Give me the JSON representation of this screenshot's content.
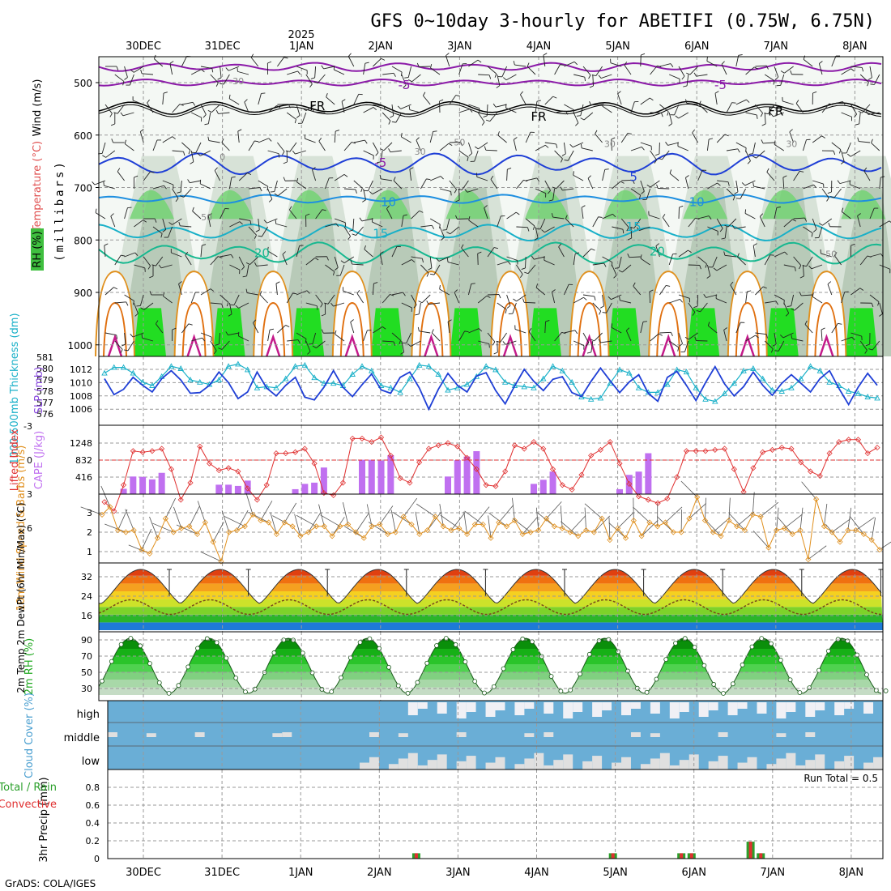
{
  "header": {
    "title": "GFS 0~10day 3-hourly for ABETIFI (0.75W, 6.75N)",
    "year_label": "2025"
  },
  "footer": {
    "credit": "GrADS: COLA/IGES"
  },
  "colors": {
    "freezing": "#000000",
    "temp_purple": "#8b1aa8",
    "temp_blue": "#1f3fd6",
    "temp_lightblue": "#1e8fe0",
    "temp_cyan": "#19b0c8",
    "temp_teal": "#17b890",
    "temp_orange": "#e0901e",
    "temp_magenta": "#c41a8a",
    "slp": "#1f3fd6",
    "thickness": "#19b0c8",
    "lifted_index": "#e03030",
    "cape": "#c070f0",
    "wind10m": "#e0901e",
    "rh2m": "#22aa22",
    "cloud": "#6aaed6",
    "precip_total": "#2ca02c",
    "precip_conv": "#e03030"
  },
  "chart_data": [
    {
      "type": "heatmap",
      "id": "upper_air",
      "ylabel_wind": "Wind (m/s)",
      "ylabel_temp": "Temperature (°C)",
      "ylabel_rh": "RH (%)",
      "ylabel_p": "(millibars)",
      "y_ticks": [
        500,
        600,
        700,
        800,
        900,
        1000
      ],
      "ylim": [
        1000,
        450
      ],
      "x_dates": [
        "30DEC",
        "31DEC",
        "1JAN",
        "2JAN",
        "3JAN",
        "4JAN",
        "5JAN",
        "6JAN",
        "7JAN",
        "8JAN"
      ],
      "contour_labels": [
        {
          "text": "-5",
          "day": 3.3,
          "p": 505
        },
        {
          "text": "-5",
          "day": 7.3,
          "p": 505
        },
        {
          "text": "FR",
          "day": 2.2,
          "p": 545
        },
        {
          "text": "FR",
          "day": 5.0,
          "p": 565
        },
        {
          "text": "FR",
          "day": 8.0,
          "p": 555
        },
        {
          "text": "-5",
          "day": 3.0,
          "p": 653
        },
        {
          "text": "5",
          "day": 6.2,
          "p": 680
        },
        {
          "text": "10",
          "day": 3.1,
          "p": 728
        },
        {
          "text": "10",
          "day": 7.0,
          "p": 728
        },
        {
          "text": "15",
          "day": 3.0,
          "p": 788
        },
        {
          "text": "15",
          "day": 6.2,
          "p": 775
        },
        {
          "text": "20",
          "day": 1.5,
          "p": 825
        },
        {
          "text": "20",
          "day": 6.5,
          "p": 822
        },
        {
          "text": "30",
          "day": 1.2,
          "p": 495
        },
        {
          "text": "30",
          "day": 3.5,
          "p": 630
        },
        {
          "text": "50",
          "day": 4.0,
          "p": 612
        },
        {
          "text": "30",
          "day": 5.9,
          "p": 615
        },
        {
          "text": "30",
          "day": 8.2,
          "p": 615
        },
        {
          "text": "50",
          "day": 0.8,
          "p": 755
        },
        {
          "text": "50",
          "day": 8.7,
          "p": 825
        },
        {
          "text": "0",
          "day": 1.0,
          "p": 640
        }
      ]
    },
    {
      "type": "line",
      "id": "slp_thickness",
      "ylabel_left": "1000-500mb Thickness (dm)",
      "ylabel_right": "SLP (mb)",
      "thickness_ticks": [
        576,
        577,
        578,
        579,
        580,
        581
      ],
      "slp_ticks": [
        1006,
        1008,
        1010,
        1012
      ],
      "series": [
        {
          "name": "SLP",
          "values": [
            1010.6,
            1008.2,
            1009.0,
            1010.8,
            1009.6,
            1008.6,
            1010.6,
            1011.8,
            1010.4,
            1008.4,
            1008.5,
            1009.6,
            1011.6,
            1010.0,
            1007.6,
            1008.6,
            1011.6,
            1009.2,
            1008.0,
            1009.6,
            1010.8,
            1007.8,
            1007.4,
            1009.3,
            1011.8,
            1009.3,
            1007.9,
            1009.7,
            1011.3,
            1008.9,
            1008.4,
            1010.8,
            1011.6,
            1009.2,
            1006.0,
            1009.0,
            1011.4,
            1009.6,
            1008.6,
            1011.0,
            1011.5,
            1008.8,
            1006.8,
            1009.5,
            1012.0,
            1010.2,
            1008.8,
            1010.5,
            1010.9,
            1008.5,
            1007.9,
            1010.2,
            1012.2,
            1010.3,
            1008.5,
            1010.1,
            1011.2,
            1008.4,
            1007.2,
            1010.8,
            1011.7,
            1009.6,
            1007.3,
            1010.0,
            1012.4,
            1009.8,
            1008.0,
            1009.4,
            1011.6,
            1009.6,
            1008.1,
            1009.9,
            1011.2,
            1009.9,
            1008.6,
            1010.6,
            1011.8,
            1009.1,
            1006.7,
            1009.3,
            1011.4,
            1009.6
          ]
        },
        {
          "name": "Thickness",
          "values": [
            579.6,
            580.1,
            580.1,
            579.6,
            578.8,
            578.5,
            579.3,
            580.2,
            580.0,
            579.0,
            578.8,
            578.6,
            579.0,
            580.2,
            580.4,
            579.9,
            578.3,
            578.4,
            578.3,
            579.1,
            580.2,
            580.3,
            579.2,
            578.7,
            578.7,
            578.5,
            579.5,
            580.2,
            579.8,
            578.5,
            578.3,
            577.9,
            579.1,
            580.3,
            580.2,
            579.5,
            578.1,
            578.3,
            578.6,
            579.3,
            580.2,
            579.9,
            578.8,
            578.5,
            578.4,
            578.3,
            579.1,
            580.2,
            579.8,
            578.8,
            577.5,
            577.3,
            577.4,
            578.7,
            579.9,
            579.6,
            578.3,
            577.9,
            577.9,
            578.6,
            579.9,
            579.7,
            578.3,
            577.3,
            577.1,
            577.8,
            578.7,
            579.8,
            580.0,
            579.1,
            578.1,
            578.0,
            578.3,
            579.1,
            580.2,
            579.8,
            578.8,
            578.5,
            578.0,
            577.8,
            577.5,
            577.4
          ]
        }
      ]
    },
    {
      "type": "bar",
      "id": "cape_li",
      "ylabel_left": "Lifted Index",
      "ylabel_right": "CAPE (J/kg)",
      "li_ticks": [
        "-3",
        "0",
        "3",
        "6"
      ],
      "cape_ticks": [
        416,
        832,
        1248
      ],
      "series": [
        {
          "name": "CAPE",
          "values": [
            0,
            0,
            130,
            430,
            420,
            360,
            520,
            0,
            0,
            0,
            0,
            0,
            230,
            230,
            200,
            330,
            0,
            0,
            0,
            0,
            120,
            250,
            280,
            650,
            0,
            0,
            0,
            840,
            840,
            820,
            950,
            0,
            0,
            0,
            0,
            0,
            430,
            830,
            920,
            1050,
            0,
            0,
            0,
            0,
            0,
            250,
            350,
            550,
            0,
            0,
            0,
            0,
            0,
            0,
            120,
            470,
            550,
            1000,
            0,
            0,
            0,
            0,
            0,
            0,
            0,
            0,
            0,
            0,
            0,
            0,
            0,
            0,
            0,
            0,
            0,
            0,
            0,
            0,
            0,
            0,
            0,
            0
          ]
        },
        {
          "name": "Lifted Index",
          "values": [
            3.7,
            4.5,
            2.2,
            -0.8,
            -0.7,
            -0.8,
            -1.0,
            0.8,
            3.5,
            2.0,
            -1.2,
            0.3,
            0.9,
            0.7,
            1.0,
            2.5,
            3.5,
            2.2,
            -0.6,
            -0.6,
            -0.7,
            -1.0,
            0.3,
            2.9,
            3.1,
            2.0,
            -1.9,
            -1.9,
            -1.6,
            -2.0,
            -0.4,
            1.6,
            2.0,
            0.2,
            -1.0,
            -1.3,
            -1.5,
            -1.2,
            -0.2,
            0.8,
            2.2,
            2.3,
            1.0,
            -1.3,
            -1.0,
            -1.6,
            -1.0,
            0.8,
            2.2,
            2.6,
            1.3,
            -0.4,
            -0.9,
            -1.6,
            0.3,
            2.1,
            3.2,
            3.5,
            3.8,
            3.4,
            1.5,
            -0.8,
            -0.8,
            -0.8,
            -0.9,
            -1.0,
            0.8,
            2.8,
            0.7,
            -0.7,
            -0.9,
            -1.1,
            -1.0,
            0.2,
            1.0,
            1.4,
            -0.6,
            -1.6,
            -1.8,
            -1.8,
            -0.6,
            -1.1
          ]
        }
      ]
    },
    {
      "type": "line",
      "id": "wind10m",
      "ylabel": "10m Wind Speed & Barbs (m/s)",
      "y_ticks": [
        1,
        2,
        3
      ],
      "series": [
        {
          "name": "Speed",
          "values": [
            2.9,
            3.3,
            2.1,
            2.0,
            2.1,
            1.1,
            0.9,
            1.7,
            2.7,
            2.0,
            2.2,
            2.3,
            1.9,
            2.5,
            1.5,
            0.5,
            2.0,
            2.1,
            2.3,
            2.9,
            2.6,
            2.5,
            1.9,
            2.5,
            2.3,
            1.8,
            2.0,
            2.3,
            2.3,
            1.8,
            2.3,
            2.4,
            2.0,
            1.7,
            2.3,
            2.4,
            1.9,
            2.0,
            2.8,
            2.4,
            1.9,
            2.1,
            2.8,
            2.3,
            2.1,
            2.2,
            1.9,
            2.4,
            2.4,
            1.7,
            2.5,
            2.3,
            2.6,
            1.9,
            2.0,
            2.1,
            2.7,
            2.3,
            2.2,
            2.0,
            1.8,
            2.1,
            2.0,
            2.7,
            1.6,
            2.2,
            1.7,
            2.6,
            1.8,
            2.5,
            2.3,
            2.5,
            2.0,
            2.0,
            2.7,
            3.8,
            2.6,
            2.0,
            1.8,
            2.6,
            2.3,
            2.1,
            2.9,
            2.8,
            1.2,
            2.1,
            2.2,
            1.9,
            2.1,
            0.6,
            3.7,
            2.3,
            2.0,
            1.5,
            2.1,
            2.1,
            1.9,
            1.6,
            1.1
          ]
        }
      ]
    },
    {
      "type": "area",
      "id": "temp2m",
      "ylabel": "2m Temp 2m DewPt (6hr Min/Max) (°C)",
      "y_ticks": [
        16,
        24,
        32
      ],
      "ylim": [
        10,
        38
      ]
    },
    {
      "type": "area",
      "id": "rh2m",
      "ylabel": "2m RH (%)",
      "y_ticks": [
        30,
        50,
        70,
        90
      ],
      "ylim": [
        22,
        98
      ]
    },
    {
      "type": "bar",
      "id": "cloud",
      "ylabel": "Cloud Cover (%)",
      "levels": [
        "high",
        "middle",
        "low"
      ]
    },
    {
      "type": "bar",
      "id": "precip",
      "ylabel": "3hr Precip (mm)",
      "legend_total": "Total / Rain",
      "legend_conv": "Convective",
      "run_total": "Run Total = 0.5",
      "y_ticks": [
        "0",
        "0.2",
        "0.4",
        "0.6",
        "0.8"
      ],
      "ylim": [
        0,
        1.0
      ],
      "x_dates": [
        "30DEC",
        "31DEC",
        "1JAN",
        "2JAN",
        "3JAN",
        "4JAN",
        "5JAN",
        "6JAN",
        "7JAN",
        "8JAN"
      ],
      "series": [
        {
          "name": "Total",
          "bars": [
            {
              "day": 3.47,
              "value": 0.06
            },
            {
              "day": 5.97,
              "value": 0.06
            },
            {
              "day": 6.84,
              "value": 0.06
            },
            {
              "day": 6.97,
              "value": 0.06
            },
            {
              "day": 7.72,
              "value": 0.19
            },
            {
              "day": 7.85,
              "value": 0.06
            }
          ]
        }
      ]
    }
  ]
}
